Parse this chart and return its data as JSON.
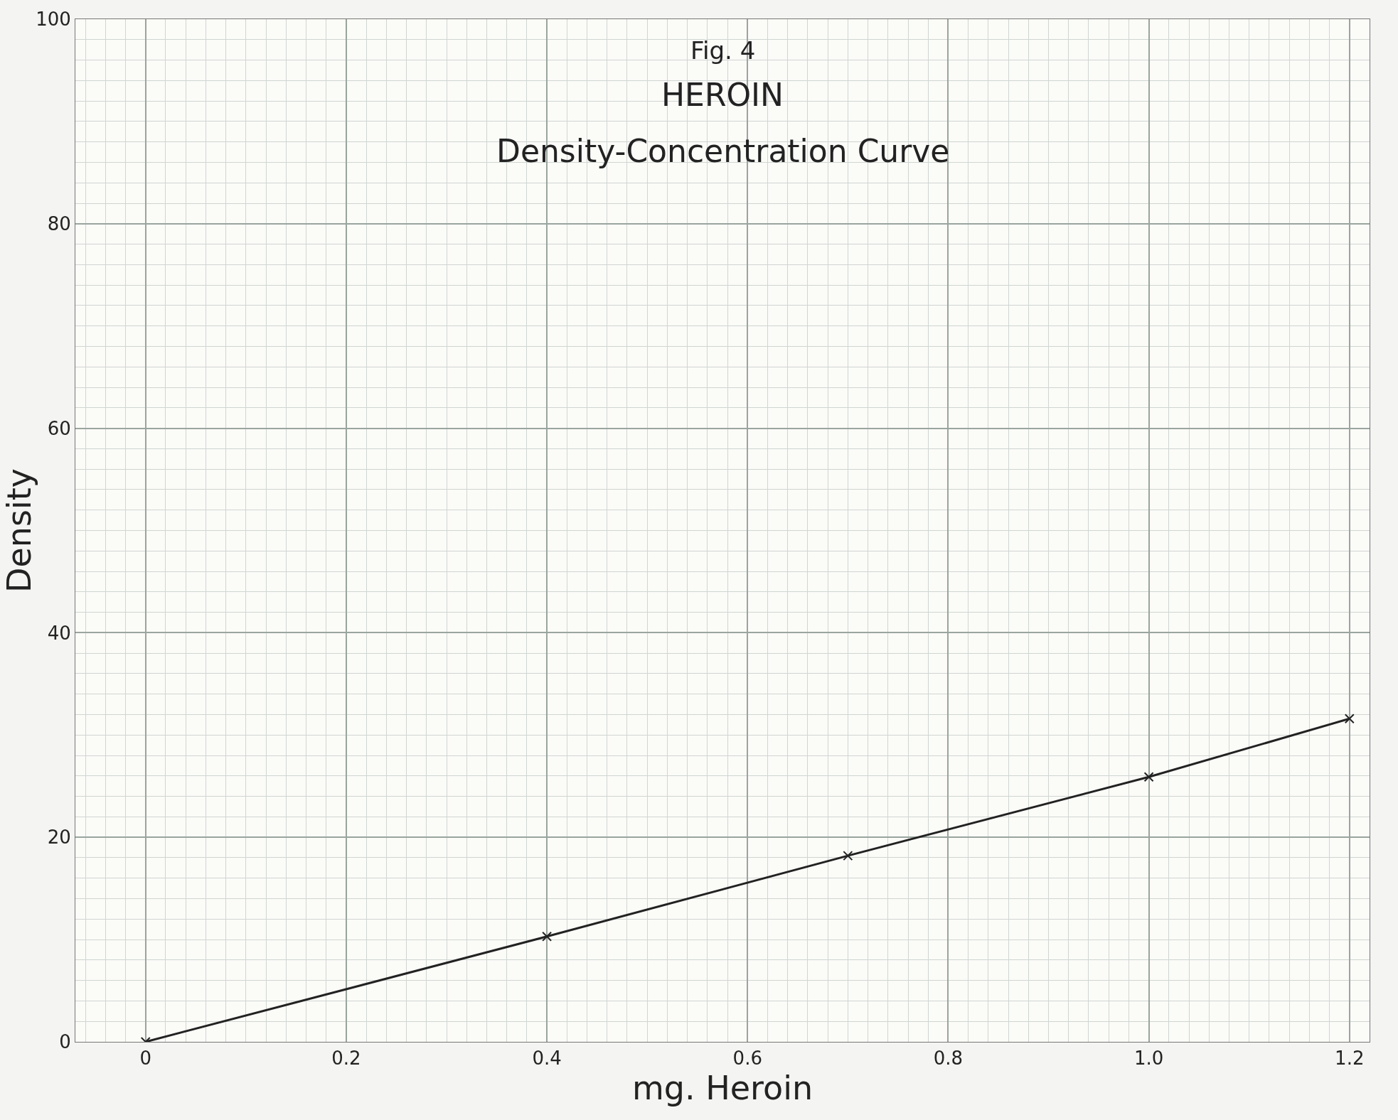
{
  "chart_data": {
    "type": "line",
    "title": "HEROIN",
    "subtitle": "Density-Concentration Curve",
    "annotations": [
      "Fig. 4"
    ],
    "xlabel": "mg. Heroin",
    "ylabel": "Density",
    "x": [
      0,
      0.4,
      0.7,
      1.0,
      1.2
    ],
    "series": [
      {
        "color": "#222222",
        "values": [
          0,
          10.3,
          18.2,
          25.9,
          31.6
        ]
      }
    ],
    "xlim": [
      -0.07,
      1.22
    ],
    "xticks": [
      {
        "value": 0,
        "label": "0"
      },
      {
        "value": 0.2,
        "label": "0.2"
      },
      {
        "value": 0.4,
        "label": "0.4"
      },
      {
        "value": 0.6,
        "label": "0.6"
      },
      {
        "value": 0.8,
        "label": "0.8"
      },
      {
        "value": 1.0,
        "label": "1.0"
      },
      {
        "value": 1.2,
        "label": "1.2"
      }
    ],
    "ylim": [
      0,
      100
    ],
    "yticks": [
      0,
      20,
      40,
      60,
      80,
      100
    ],
    "grid": true,
    "marker": "cross",
    "line_style": "solid"
  }
}
